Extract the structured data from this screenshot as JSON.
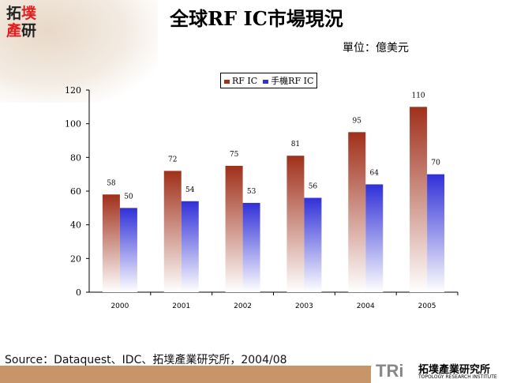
{
  "logo": {
    "text": "拓墣產研"
  },
  "title": "全球RF IC市場現況",
  "unit": "單位：億美元",
  "source": "Source：Dataquest、IDC、拓墣產業研究所，2004/08",
  "footer_logo": {
    "mark": "TRi",
    "name": "拓墣產業研究所",
    "subname": "TOPOLOGY RESEARCH INSTITUTE"
  },
  "chart_data": {
    "type": "bar",
    "categories": [
      "2000",
      "2001",
      "2002",
      "2003",
      "2004",
      "2005"
    ],
    "series": [
      {
        "name": "RF IC",
        "values": [
          58,
          72,
          75,
          81,
          95,
          110
        ],
        "color": "#a0301a"
      },
      {
        "name": "手機RF IC",
        "values": [
          50,
          54,
          53,
          56,
          64,
          70
        ],
        "color": "#3030d8"
      }
    ],
    "ylim": [
      0,
      120
    ],
    "yticks": [
      0,
      20,
      40,
      60,
      80,
      100,
      120
    ],
    "legend": "top",
    "grid": false
  }
}
